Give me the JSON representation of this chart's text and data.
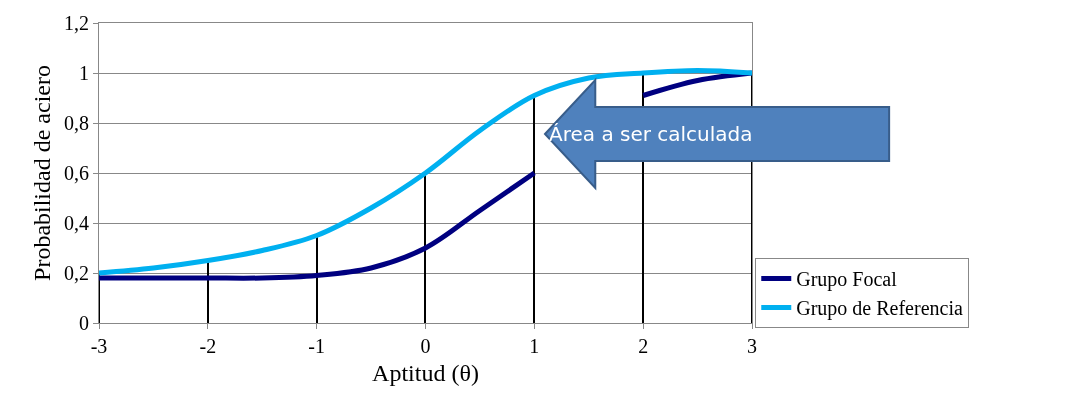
{
  "chart_data": {
    "type": "line",
    "xlabel": "Aptitud (θ)",
    "ylabel": "Probabilidad de aciero",
    "xlim": [
      -3,
      3
    ],
    "xticks": [
      -3,
      -2,
      -1,
      0,
      1,
      2,
      3
    ],
    "ylim": [
      0,
      1.2
    ],
    "yticks": [
      {
        "value": 0,
        "label": "0"
      },
      {
        "value": 0.2,
        "label": "0,2"
      },
      {
        "value": 0.4,
        "label": "0,4"
      },
      {
        "value": 0.6,
        "label": "0,6"
      },
      {
        "value": 0.8,
        "label": "0,8"
      },
      {
        "value": 1,
        "label": "1"
      },
      {
        "value": 1.2,
        "label": "1,2"
      }
    ],
    "grid": "y",
    "legend": "right",
    "series": [
      {
        "type": "bar",
        "color": "#000000",
        "x": [
          -3,
          -2,
          -1,
          0,
          1,
          2,
          3
        ],
        "values": [
          0.2,
          0.25,
          0.35,
          0.6,
          0.91,
          1.0,
          1.0
        ]
      },
      {
        "name": "Grupo Focal",
        "color": "#000080",
        "x": [
          -3,
          -2.5,
          -2,
          -1.5,
          -1,
          -0.5,
          0,
          0.5,
          1,
          1.5,
          2,
          2.5,
          3
        ],
        "values": [
          0.18,
          0.18,
          0.18,
          0.18,
          0.19,
          0.22,
          0.3,
          0.45,
          0.6,
          null,
          0.91,
          0.97,
          1.0
        ]
      },
      {
        "name": "Grupo de Referencia",
        "color": "#00b0f0",
        "x": [
          -3,
          -2.5,
          -2,
          -1.5,
          -1,
          -0.5,
          0,
          0.5,
          1,
          1.5,
          2,
          2.5,
          3
        ],
        "values": [
          0.2,
          0.22,
          0.25,
          0.29,
          0.35,
          0.46,
          0.6,
          0.77,
          0.91,
          0.98,
          1.0,
          1.01,
          1.0
        ]
      }
    ],
    "annotations": [
      "Área a ser calculada"
    ]
  }
}
